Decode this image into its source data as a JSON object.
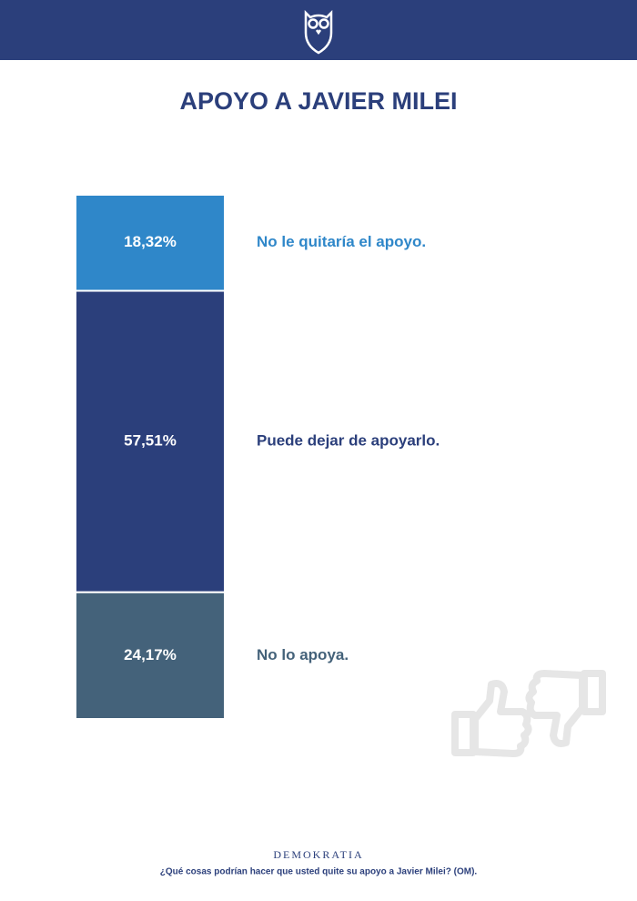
{
  "chart_data": {
    "type": "stacked-bar",
    "title": "APOYO A JAVIER MILEI",
    "series": [
      {
        "name": "No le quitaría el apoyo.",
        "color": "#2f87c9",
        "values": [
          18.32
        ],
        "value_labels": [
          "18,32%"
        ]
      },
      {
        "name": "Puede dejar de apoyarlo.",
        "color": "#2b3f7b",
        "values": [
          57.51
        ],
        "value_labels": [
          "57,51%"
        ]
      },
      {
        "name": "No lo apoya.",
        "color": "#44627a",
        "values": [
          24.17
        ],
        "value_labels": [
          "24,17%"
        ]
      }
    ],
    "brand": "DEMOKRATIA",
    "note": "¿Qué cosas podrían hacer que usted quite su apoyo a Javier Milei? (OM)."
  }
}
